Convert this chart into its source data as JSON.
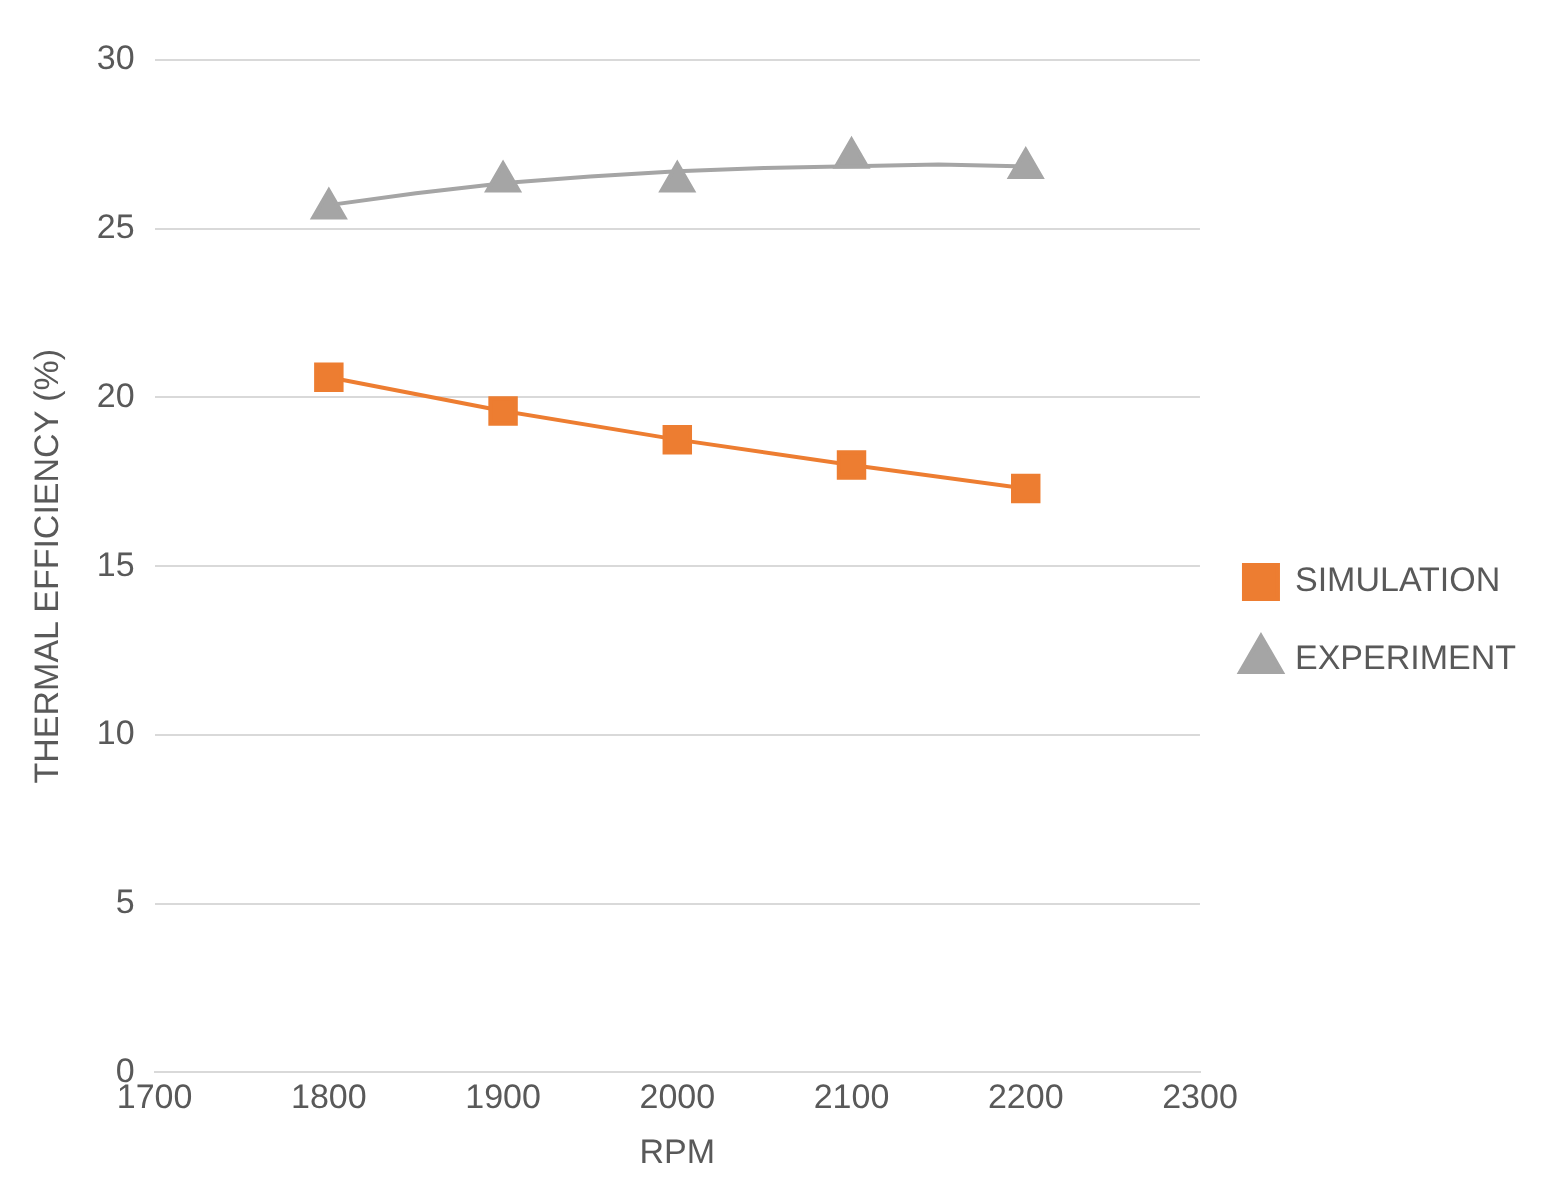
{
  "chart_data": {
    "type": "line",
    "xlabel": "RPM",
    "ylabel": "THERMAL EFFICIENCY (%)",
    "x": [
      1800,
      1900,
      2000,
      2100,
      2200
    ],
    "xlim": [
      1700,
      2300
    ],
    "xticks": [
      1700,
      1800,
      1900,
      2000,
      2100,
      2200,
      2300
    ],
    "ylim": [
      0,
      30
    ],
    "yticks": [
      0,
      5,
      10,
      15,
      20,
      25,
      30
    ],
    "grid": "y",
    "legend": "right",
    "line_style": "solid",
    "series": [
      {
        "name": "SIMULATION",
        "type": "line",
        "marker": "square",
        "color": "#ed7d31",
        "values": [
          20.6,
          19.6,
          18.75,
          18,
          17.3
        ]
      },
      {
        "name": "EXPERIMENT",
        "type": "scatter",
        "marker": "triangle",
        "color": "#a5a5a5",
        "values": [
          25.6,
          26.4,
          26.4,
          27.1,
          26.8
        ]
      },
      {
        "type": "line",
        "marker": "none",
        "color": "#a5a5a5",
        "x": [
          1800,
          1850,
          1900,
          1950,
          2000,
          2050,
          2100,
          2150,
          2200
        ],
        "values": [
          25.7,
          26.05,
          26.35,
          26.55,
          26.7,
          26.8,
          26.85,
          26.9,
          26.85
        ]
      }
    ]
  }
}
